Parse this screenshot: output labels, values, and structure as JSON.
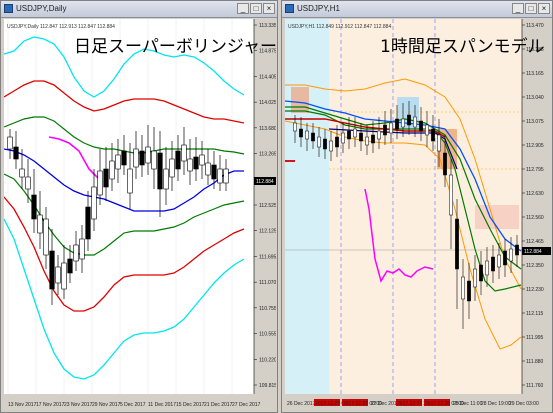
{
  "left_window": {
    "title": "USDJPY,Daily",
    "ohlc_label": "USDJPY,Daily  112.847 112.913 112.847 112.884",
    "overlay_text": "日足スーパーボリンジャー",
    "price_ticks": [
      "113.335",
      "114.875",
      "114.405",
      "114.025",
      "113.680",
      "113.265",
      "112.880",
      "112.525",
      "112.125",
      "111.695",
      "111.070",
      "110.755",
      "110.555",
      "110.220",
      "109.815"
    ],
    "current_price": "112.884",
    "date_ticks": [
      "13 Nov 2017",
      "17 Nov 2017",
      "23 Nov 2017",
      "29 Nov 2017",
      "5 Dec 2017",
      "11 Dec 2017",
      "15 Dec 2017",
      "21 Dec 2017",
      "27 Dec 2017"
    ]
  },
  "right_window": {
    "title": "USDJPY,H1",
    "ohlc_label": "USDJPY,H1  112.849 112.912 112.847 112.884",
    "overlay_text": "1時間足スパンモデル",
    "price_ticks": [
      "113.470",
      "113.285",
      "113.165",
      "113.040",
      "113.075",
      "112.905",
      "112.795",
      "112.630",
      "112.560",
      "112.465",
      "112.350",
      "112.230",
      "112.115",
      "111.995",
      "111.880",
      "111.760"
    ],
    "current_price": "112.884",
    "date_ticks": [
      "26 Dec 2017",
      "2017.12.27 04:00",
      "2017.12.27 00:00",
      "27 Dec 2017",
      "2017.12.27 22:00",
      "2017.12.28 07:00",
      "28 Dec 11:00",
      "28 Dec 19:00",
      "29 Dec 03:00"
    ]
  },
  "colors": {
    "sigma3": "#00e5ee",
    "sigma2": "#e00000",
    "sigma1": "#007a00",
    "mid": "#0000e0",
    "lag": "#ff00ff",
    "span_blue_zone": "#b8dcf0",
    "span_red_zone": "#f9e6d4"
  }
}
